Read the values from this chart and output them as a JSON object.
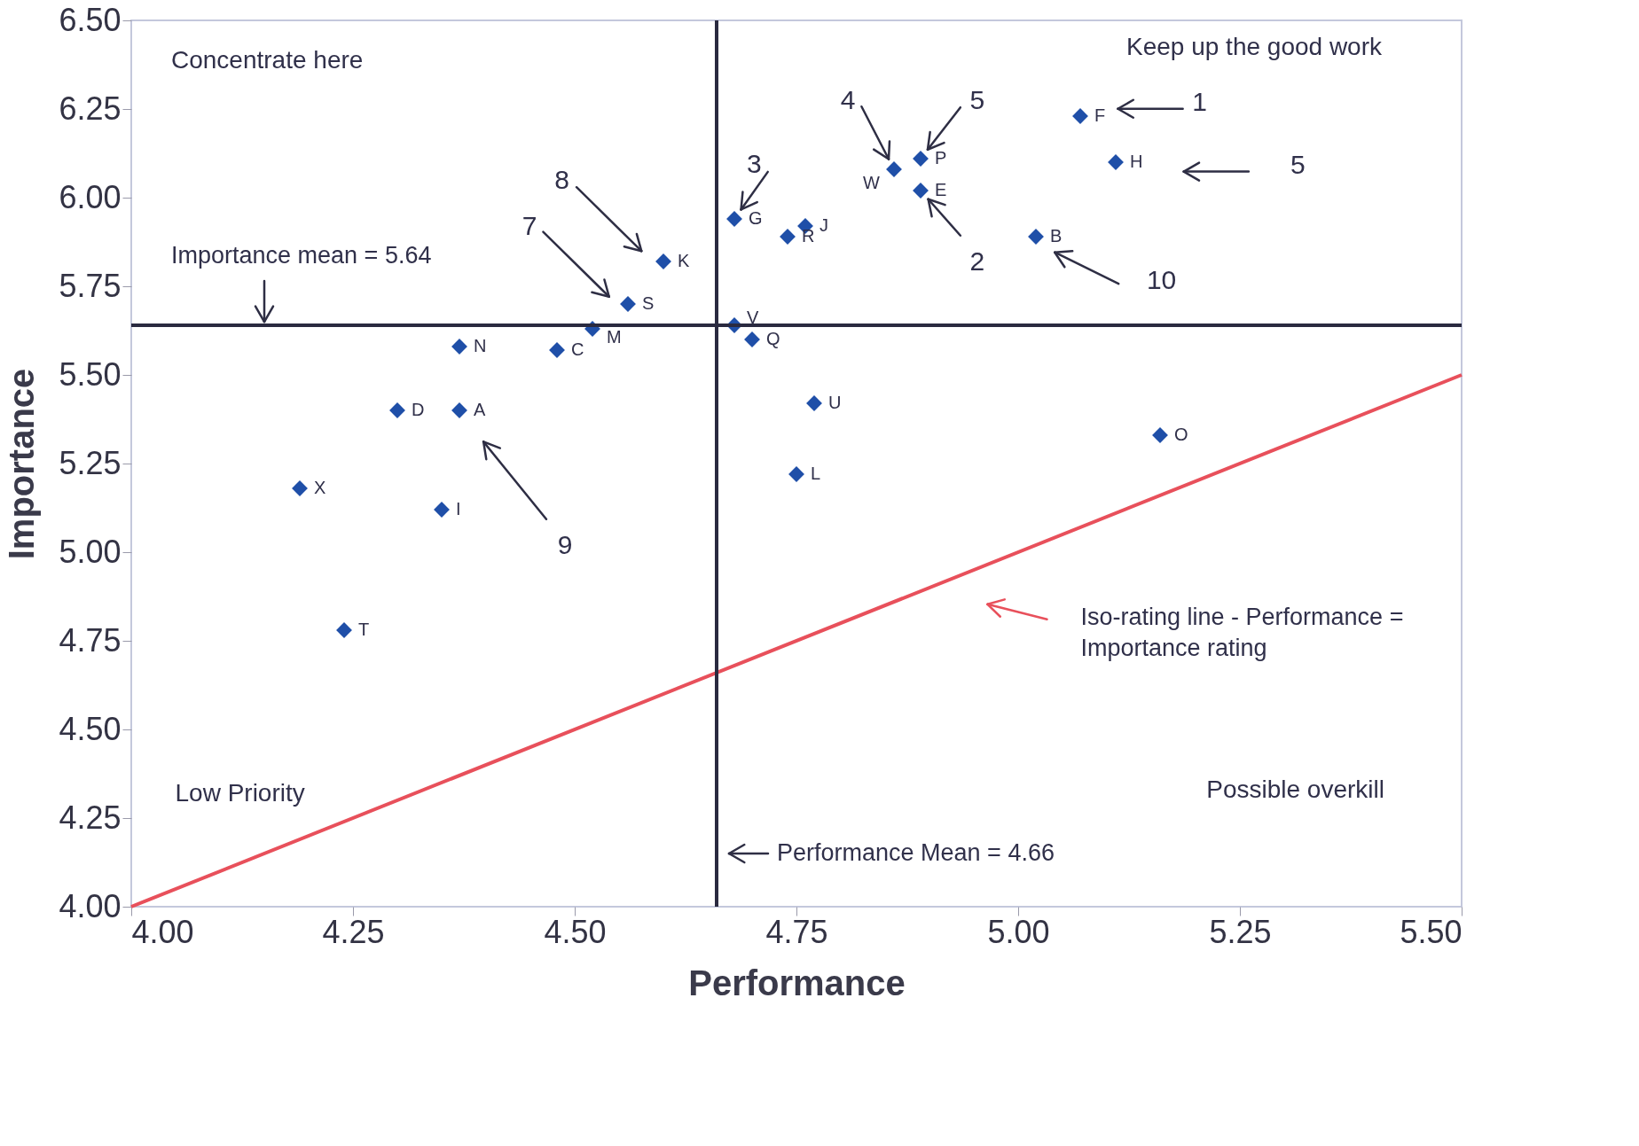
{
  "chart_data": {
    "type": "scatter",
    "xlabel": "Performance",
    "ylabel": "Importance",
    "xlim": [
      4.0,
      5.5
    ],
    "ylim": [
      4.0,
      6.5
    ],
    "xticks": [
      {
        "value": 4.0,
        "label": "4.00"
      },
      {
        "value": 4.25,
        "label": "4.25"
      },
      {
        "value": 4.5,
        "label": "4.50"
      },
      {
        "value": 4.75,
        "label": "4.75"
      },
      {
        "value": 5.0,
        "label": "5.00"
      },
      {
        "value": 5.25,
        "label": "5.25"
      },
      {
        "value": 5.5,
        "label": "5.50"
      }
    ],
    "yticks": [
      {
        "value": 4.0,
        "label": "4.00"
      },
      {
        "value": 4.25,
        "label": "4.25"
      },
      {
        "value": 4.5,
        "label": "4.50"
      },
      {
        "value": 4.75,
        "label": "4.75"
      },
      {
        "value": 5.0,
        "label": "5.00"
      },
      {
        "value": 5.25,
        "label": "5.25"
      },
      {
        "value": 5.5,
        "label": "5.50"
      },
      {
        "value": 5.75,
        "label": "5.75"
      },
      {
        "value": 6.0,
        "label": "6.00"
      },
      {
        "value": 6.25,
        "label": "6.25"
      },
      {
        "value": 6.5,
        "label": "6.50"
      }
    ],
    "series": [
      {
        "marker": "diamond",
        "color": "#1f4fa8",
        "x": [
          4.37,
          5.02,
          4.48,
          4.3,
          4.89,
          5.07,
          4.68,
          5.11,
          4.35,
          4.76,
          4.6,
          4.75,
          4.52,
          4.37,
          5.16,
          4.89,
          4.7,
          4.74,
          4.56,
          4.24,
          4.77,
          4.68,
          4.86,
          4.19
        ],
        "values": [
          5.4,
          5.89,
          5.57,
          5.4,
          6.02,
          6.23,
          5.94,
          6.1,
          5.12,
          5.92,
          5.82,
          5.22,
          5.63,
          5.58,
          5.33,
          6.11,
          5.6,
          5.89,
          5.7,
          4.78,
          5.42,
          5.64,
          6.08,
          5.18
        ]
      },
      {
        "type": "line",
        "name": "Iso-rating line - Performance = Importance rating",
        "color": "#e8505b",
        "x": [
          4.0,
          5.5
        ],
        "values": [
          4.0,
          5.5
        ]
      }
    ],
    "ref_lines": [
      {
        "axis": "y",
        "value": 5.64,
        "label": "Importance mean = 5.64",
        "color": "#2a2a40"
      },
      {
        "axis": "x",
        "value": 4.66,
        "label": "Performance Mean = 4.66",
        "color": "#2a2a40"
      }
    ],
    "annotations": [
      {
        "text": "A",
        "x": 4.37,
        "y": 5.4
      },
      {
        "text": "B",
        "x": 5.02,
        "y": 5.89
      },
      {
        "text": "C",
        "x": 4.48,
        "y": 5.57
      },
      {
        "text": "D",
        "x": 4.3,
        "y": 5.4
      },
      {
        "text": "E",
        "x": 4.89,
        "y": 6.02
      },
      {
        "text": "F",
        "x": 5.07,
        "y": 6.23
      },
      {
        "text": "G",
        "x": 4.68,
        "y": 5.94
      },
      {
        "text": "H",
        "x": 5.11,
        "y": 6.1
      },
      {
        "text": "I",
        "x": 4.35,
        "y": 5.12
      },
      {
        "text": "J",
        "x": 4.76,
        "y": 5.92
      },
      {
        "text": "K",
        "x": 4.6,
        "y": 5.82
      },
      {
        "text": "L",
        "x": 4.75,
        "y": 5.22
      },
      {
        "text": "M",
        "x": 4.52,
        "y": 5.63
      },
      {
        "text": "N",
        "x": 4.37,
        "y": 5.58
      },
      {
        "text": "O",
        "x": 5.16,
        "y": 5.33
      },
      {
        "text": "P",
        "x": 4.89,
        "y": 6.11
      },
      {
        "text": "Q",
        "x": 4.7,
        "y": 5.6
      },
      {
        "text": "R",
        "x": 4.74,
        "y": 5.89
      },
      {
        "text": "S",
        "x": 4.56,
        "y": 5.7
      },
      {
        "text": "T",
        "x": 4.24,
        "y": 4.78
      },
      {
        "text": "U",
        "x": 4.77,
        "y": 5.42
      },
      {
        "text": "V",
        "x": 4.68,
        "y": 5.64
      },
      {
        "text": "W",
        "x": 4.86,
        "y": 6.08
      },
      {
        "text": "X",
        "x": 4.19,
        "y": 5.18
      },
      "1",
      {
        "text": "2",
        "x": 4.89,
        "y": 6.02
      },
      {
        "text": "3",
        "x": 4.68,
        "y": 5.94
      },
      {
        "text": "4",
        "x": 4.86,
        "y": 6.08
      },
      {
        "text": "5",
        "x": 4.89,
        "y": 6.11
      },
      "5",
      "7",
      "8",
      "9",
      "10",
      "Concentrate here",
      "Keep up the good work",
      "Low Priority",
      "Possible overkill"
    ]
  }
}
